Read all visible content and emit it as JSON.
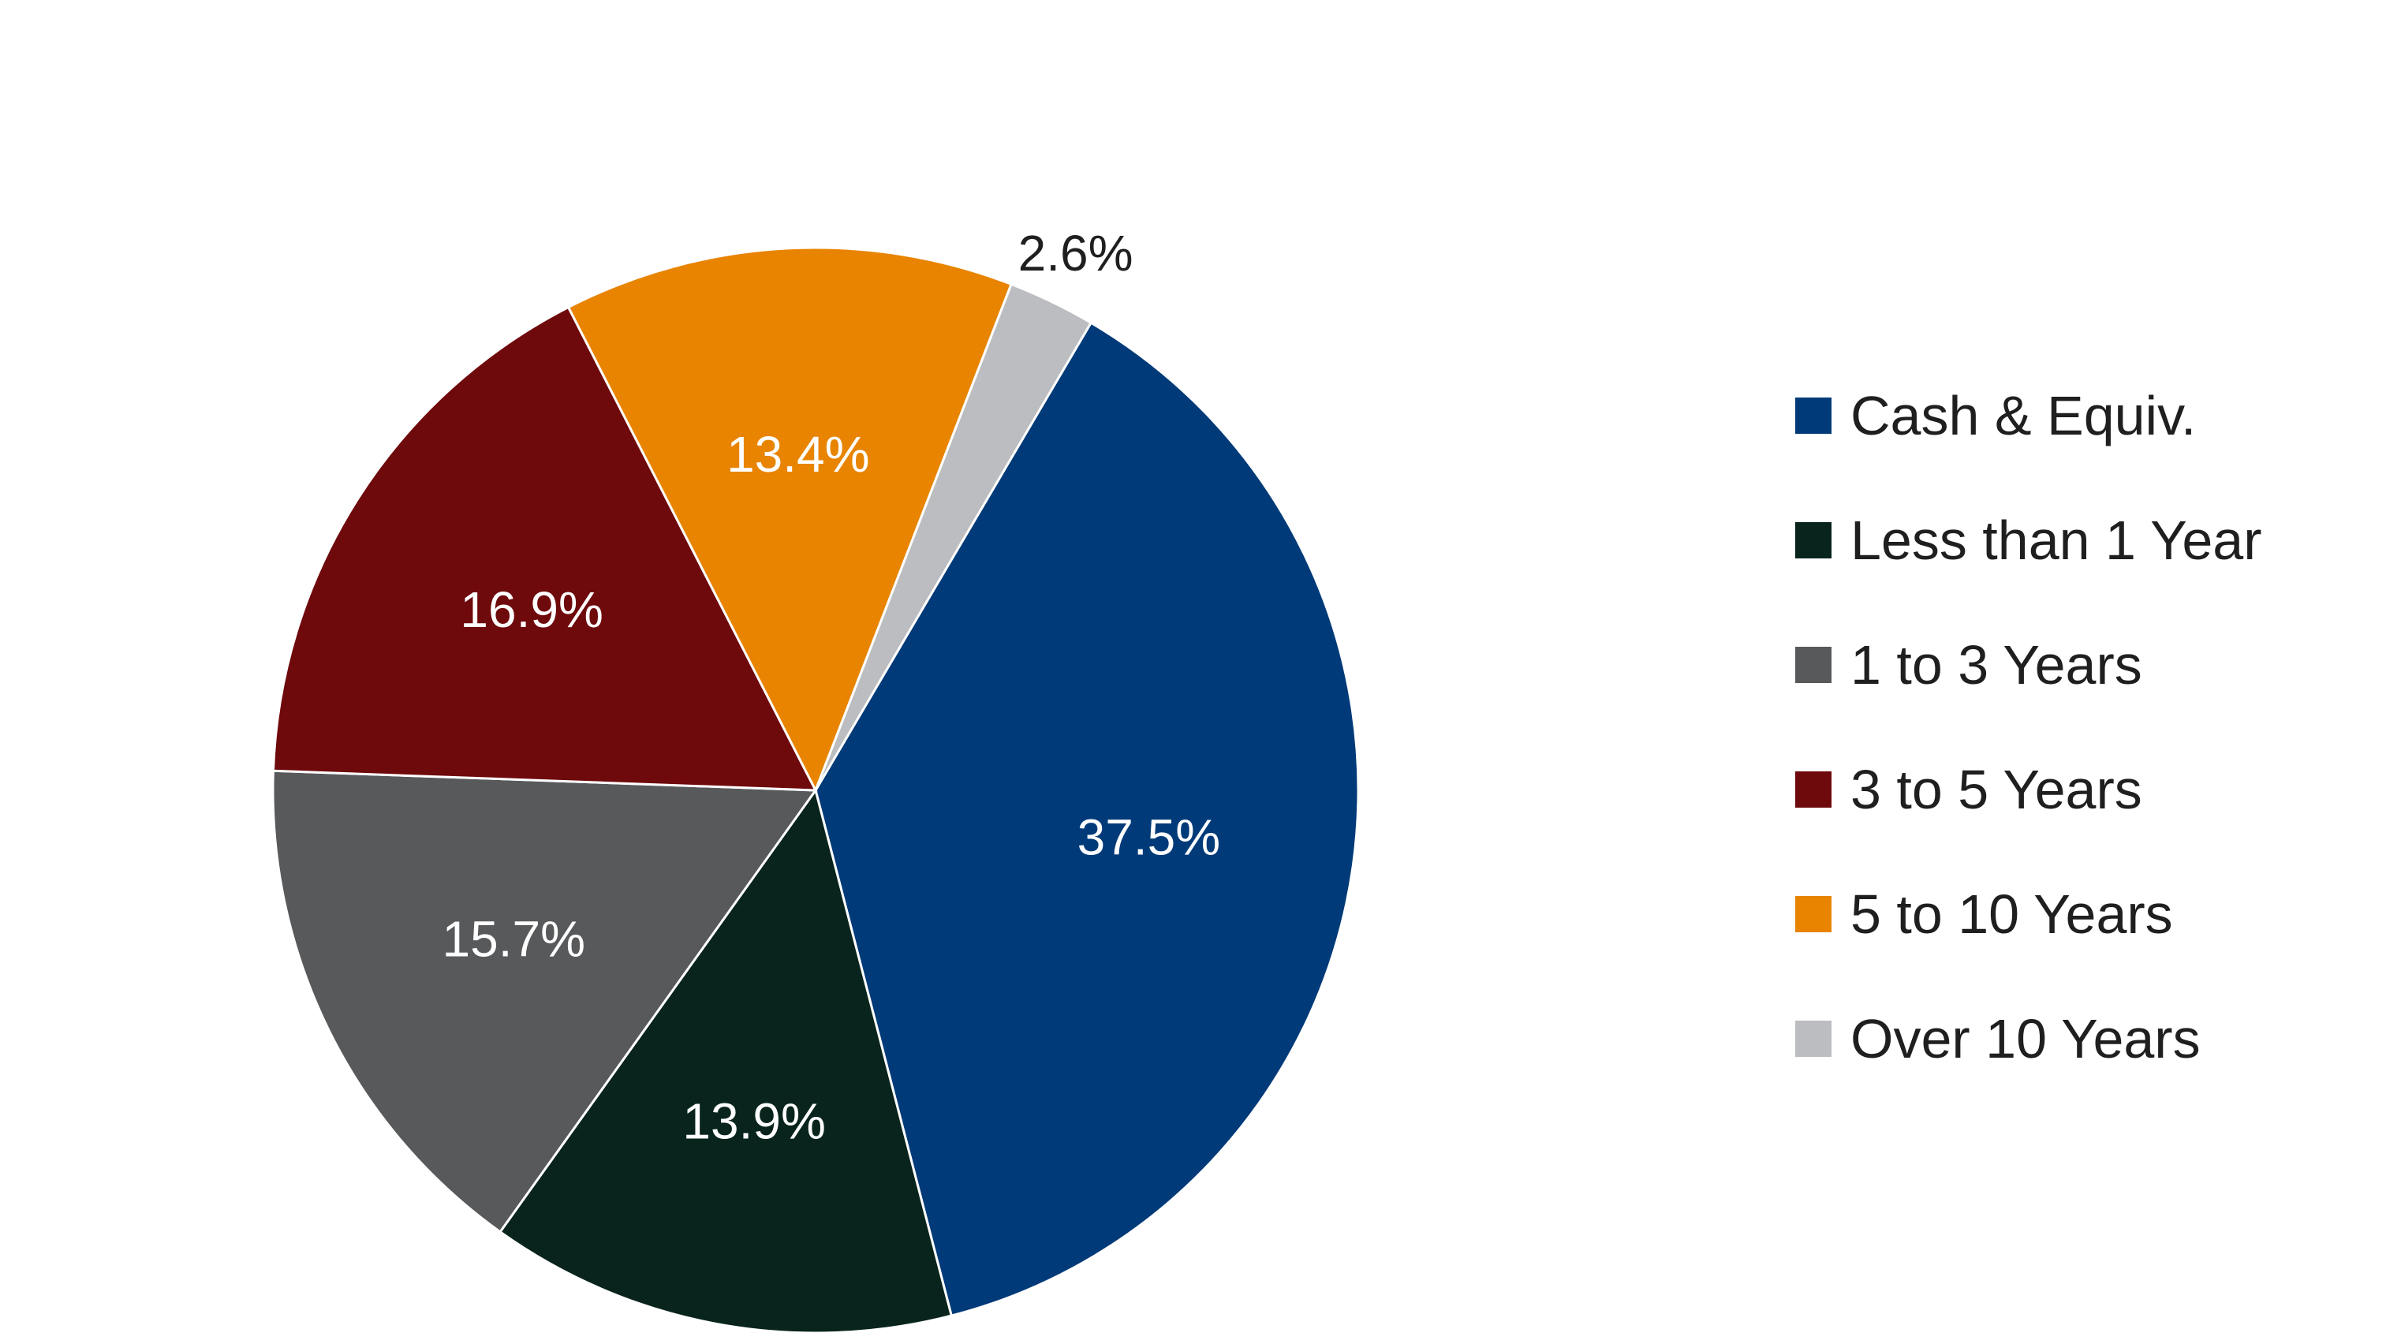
{
  "chart_data": {
    "type": "pie",
    "title": "",
    "start_angle_deg": 30.5,
    "direction": "clockwise",
    "legend_position": "right",
    "slices": [
      {
        "name": "Cash & Equiv.",
        "value": 37.5,
        "label": "37.5%",
        "color": "#003a78",
        "label_color": "#ffffff"
      },
      {
        "name": "Less than 1 Year",
        "value": 13.9,
        "label": "13.9%",
        "color": "#08241c",
        "label_color": "#ffffff"
      },
      {
        "name": "1 to 3 Years",
        "value": 15.7,
        "label": "15.7%",
        "color": "#58595b",
        "label_color": "#ffffff"
      },
      {
        "name": "3 to 5 Years",
        "value": 16.9,
        "label": "16.9%",
        "color": "#6e090c",
        "label_color": "#ffffff"
      },
      {
        "name": "5 to 10 Years",
        "value": 13.4,
        "label": "13.4%",
        "color": "#e88400",
        "label_color": "#ffffff"
      },
      {
        "name": "Over 10 Years",
        "value": 2.6,
        "label": "2.6%",
        "color": "#bcbdc0",
        "label_color": "#1f1f1f"
      }
    ]
  }
}
